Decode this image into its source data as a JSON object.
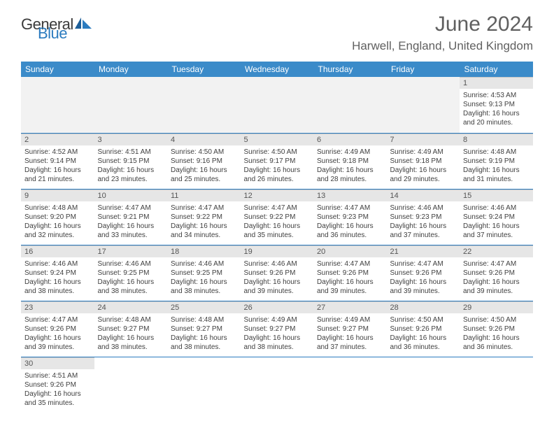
{
  "logo": {
    "part1": "General",
    "part2": "Blue"
  },
  "title": "June 2024",
  "location": "Harwell, England, United Kingdom",
  "colors": {
    "header_bg": "#3b8bc9",
    "header_text": "#ffffff",
    "daynum_bg": "#e6e6e6",
    "blank_bg": "#f2f2f2",
    "row_border": "#2b7bbf",
    "logo_blue": "#2b7bbf",
    "body_text": "#404040"
  },
  "weekdays": [
    "Sunday",
    "Monday",
    "Tuesday",
    "Wednesday",
    "Thursday",
    "Friday",
    "Saturday"
  ],
  "first_weekday_index": 6,
  "days": [
    {
      "n": 1,
      "sunrise": "4:53 AM",
      "sunset": "9:13 PM",
      "dl_h": 16,
      "dl_m": 20
    },
    {
      "n": 2,
      "sunrise": "4:52 AM",
      "sunset": "9:14 PM",
      "dl_h": 16,
      "dl_m": 21
    },
    {
      "n": 3,
      "sunrise": "4:51 AM",
      "sunset": "9:15 PM",
      "dl_h": 16,
      "dl_m": 23
    },
    {
      "n": 4,
      "sunrise": "4:50 AM",
      "sunset": "9:16 PM",
      "dl_h": 16,
      "dl_m": 25
    },
    {
      "n": 5,
      "sunrise": "4:50 AM",
      "sunset": "9:17 PM",
      "dl_h": 16,
      "dl_m": 26
    },
    {
      "n": 6,
      "sunrise": "4:49 AM",
      "sunset": "9:18 PM",
      "dl_h": 16,
      "dl_m": 28
    },
    {
      "n": 7,
      "sunrise": "4:49 AM",
      "sunset": "9:18 PM",
      "dl_h": 16,
      "dl_m": 29
    },
    {
      "n": 8,
      "sunrise": "4:48 AM",
      "sunset": "9:19 PM",
      "dl_h": 16,
      "dl_m": 31
    },
    {
      "n": 9,
      "sunrise": "4:48 AM",
      "sunset": "9:20 PM",
      "dl_h": 16,
      "dl_m": 32
    },
    {
      "n": 10,
      "sunrise": "4:47 AM",
      "sunset": "9:21 PM",
      "dl_h": 16,
      "dl_m": 33
    },
    {
      "n": 11,
      "sunrise": "4:47 AM",
      "sunset": "9:22 PM",
      "dl_h": 16,
      "dl_m": 34
    },
    {
      "n": 12,
      "sunrise": "4:47 AM",
      "sunset": "9:22 PM",
      "dl_h": 16,
      "dl_m": 35
    },
    {
      "n": 13,
      "sunrise": "4:47 AM",
      "sunset": "9:23 PM",
      "dl_h": 16,
      "dl_m": 36
    },
    {
      "n": 14,
      "sunrise": "4:46 AM",
      "sunset": "9:23 PM",
      "dl_h": 16,
      "dl_m": 37
    },
    {
      "n": 15,
      "sunrise": "4:46 AM",
      "sunset": "9:24 PM",
      "dl_h": 16,
      "dl_m": 37
    },
    {
      "n": 16,
      "sunrise": "4:46 AM",
      "sunset": "9:24 PM",
      "dl_h": 16,
      "dl_m": 38
    },
    {
      "n": 17,
      "sunrise": "4:46 AM",
      "sunset": "9:25 PM",
      "dl_h": 16,
      "dl_m": 38
    },
    {
      "n": 18,
      "sunrise": "4:46 AM",
      "sunset": "9:25 PM",
      "dl_h": 16,
      "dl_m": 38
    },
    {
      "n": 19,
      "sunrise": "4:46 AM",
      "sunset": "9:26 PM",
      "dl_h": 16,
      "dl_m": 39
    },
    {
      "n": 20,
      "sunrise": "4:47 AM",
      "sunset": "9:26 PM",
      "dl_h": 16,
      "dl_m": 39
    },
    {
      "n": 21,
      "sunrise": "4:47 AM",
      "sunset": "9:26 PM",
      "dl_h": 16,
      "dl_m": 39
    },
    {
      "n": 22,
      "sunrise": "4:47 AM",
      "sunset": "9:26 PM",
      "dl_h": 16,
      "dl_m": 39
    },
    {
      "n": 23,
      "sunrise": "4:47 AM",
      "sunset": "9:26 PM",
      "dl_h": 16,
      "dl_m": 39
    },
    {
      "n": 24,
      "sunrise": "4:48 AM",
      "sunset": "9:27 PM",
      "dl_h": 16,
      "dl_m": 38
    },
    {
      "n": 25,
      "sunrise": "4:48 AM",
      "sunset": "9:27 PM",
      "dl_h": 16,
      "dl_m": 38
    },
    {
      "n": 26,
      "sunrise": "4:49 AM",
      "sunset": "9:27 PM",
      "dl_h": 16,
      "dl_m": 38
    },
    {
      "n": 27,
      "sunrise": "4:49 AM",
      "sunset": "9:27 PM",
      "dl_h": 16,
      "dl_m": 37
    },
    {
      "n": 28,
      "sunrise": "4:50 AM",
      "sunset": "9:26 PM",
      "dl_h": 16,
      "dl_m": 36
    },
    {
      "n": 29,
      "sunrise": "4:50 AM",
      "sunset": "9:26 PM",
      "dl_h": 16,
      "dl_m": 36
    },
    {
      "n": 30,
      "sunrise": "4:51 AM",
      "sunset": "9:26 PM",
      "dl_h": 16,
      "dl_m": 35
    }
  ],
  "labels": {
    "sunrise": "Sunrise:",
    "sunset": "Sunset:",
    "daylight": "Daylight:",
    "hours": "hours",
    "and": "and",
    "minutes": "minutes."
  }
}
